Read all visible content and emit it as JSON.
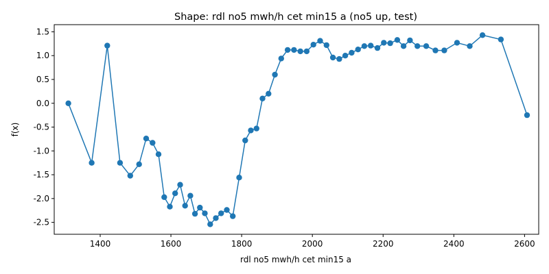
{
  "chart_data": {
    "type": "line",
    "title": "Shape: rdl no5 mwh/h cet min15 a (no5 up, test)",
    "xlabel": "rdl no5 mwh/h cet min15 a",
    "ylabel": "f(x)",
    "xlim": [
      1270,
      2640
    ],
    "ylim": [
      -2.75,
      1.65
    ],
    "xticks": [
      1400,
      1600,
      1800,
      2000,
      2200,
      2400,
      2600
    ],
    "yticks": [
      -2.5,
      -2.0,
      -1.5,
      -1.0,
      -0.5,
      0.0,
      0.5,
      1.0,
      1.5
    ],
    "grid": false,
    "color": "#1f77b4",
    "series": [
      {
        "x": [
          1310,
          1376,
          1420,
          1456,
          1485,
          1510,
          1530,
          1548,
          1565,
          1581,
          1597,
          1612,
          1626,
          1640,
          1655,
          1668,
          1682,
          1696,
          1711,
          1727,
          1742,
          1758,
          1775,
          1793,
          1810,
          1826,
          1842,
          1859,
          1876,
          1894,
          1912,
          1930,
          1948,
          1966,
          1984,
          2003,
          2022,
          2040,
          2058,
          2076,
          2093,
          2111,
          2129,
          2147,
          2165,
          2184,
          2202,
          2220,
          2240,
          2258,
          2276,
          2297,
          2322,
          2348,
          2373,
          2409,
          2445,
          2481,
          2533,
          2607
        ],
        "y": [
          0.0,
          -1.25,
          1.21,
          -1.25,
          -1.52,
          -1.28,
          -0.74,
          -0.83,
          -1.07,
          -1.97,
          -2.17,
          -1.89,
          -1.71,
          -2.15,
          -1.94,
          -2.32,
          -2.19,
          -2.31,
          -2.54,
          -2.41,
          -2.31,
          -2.24,
          -2.37,
          -1.56,
          -0.78,
          -0.57,
          -0.53,
          0.1,
          0.2,
          0.6,
          0.94,
          1.12,
          1.12,
          1.09,
          1.09,
          1.23,
          1.31,
          1.22,
          0.96,
          0.93,
          1.0,
          1.06,
          1.13,
          1.2,
          1.21,
          1.16,
          1.27,
          1.26,
          1.33,
          1.2,
          1.32,
          1.2,
          1.2,
          1.11,
          1.11,
          1.27,
          1.2,
          1.43,
          1.34,
          -0.25
        ]
      }
    ]
  }
}
